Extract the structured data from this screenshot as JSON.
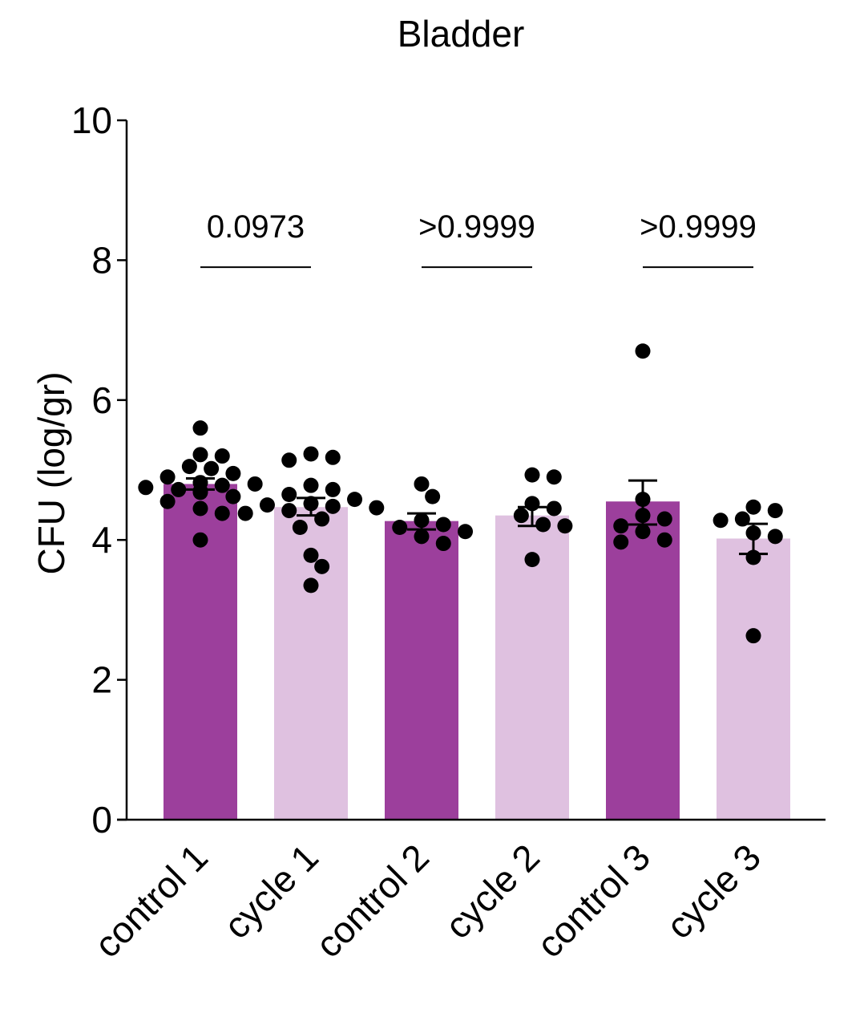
{
  "chart_data": {
    "type": "bar",
    "title": "Bladder",
    "ylabel": "CFU (log/gr)",
    "xlabel": "",
    "ylim": [
      0,
      10
    ],
    "yticks": [
      0,
      2,
      4,
      6,
      8,
      10
    ],
    "categories": [
      "control 1",
      "cycle 1",
      "control 2",
      "cycle 2",
      "control 3",
      "cycle 3"
    ],
    "values": [
      4.8,
      4.47,
      4.27,
      4.35,
      4.55,
      4.02
    ],
    "error": [
      [
        4.72,
        4.88
      ],
      [
        4.35,
        4.6
      ],
      [
        4.15,
        4.38
      ],
      [
        4.2,
        4.47
      ],
      [
        4.22,
        4.85
      ],
      [
        3.8,
        4.23
      ]
    ],
    "bar_colors": [
      "#9c3f9c",
      "#dfc1e0",
      "#9c3f9c",
      "#dfc1e0",
      "#9c3f9c",
      "#dfc1e0"
    ],
    "points": [
      [
        5.6,
        5.22,
        5.2,
        5.05,
        5.02,
        4.95,
        4.9,
        4.82,
        4.8,
        4.78,
        4.75,
        4.72,
        4.7,
        4.68,
        4.62,
        4.55,
        4.45,
        4.38,
        4.0
      ],
      [
        5.23,
        5.18,
        5.14,
        4.78,
        4.72,
        4.65,
        4.58,
        4.52,
        4.5,
        4.48,
        4.46,
        4.42,
        4.38,
        4.3,
        4.18,
        3.78,
        3.62,
        3.35
      ],
      [
        4.8,
        4.62,
        4.28,
        4.22,
        4.18,
        4.12,
        4.05,
        3.95
      ],
      [
        4.93,
        4.9,
        4.52,
        4.45,
        4.35,
        4.22,
        4.2,
        3.72
      ],
      [
        6.7,
        4.58,
        4.35,
        4.3,
        4.2,
        4.12,
        4.0,
        3.97
      ],
      [
        4.47,
        4.42,
        4.3,
        4.28,
        4.1,
        4.05,
        3.75,
        2.63
      ]
    ],
    "comparisons": [
      {
        "from": "control 1",
        "to": "cycle 1",
        "label": "0.0973",
        "y": 7.9
      },
      {
        "from": "control 2",
        "to": "cycle 2",
        "label": ">0.9999",
        "y": 7.9
      },
      {
        "from": "control 3",
        "to": "cycle 3",
        "label": ">0.9999",
        "y": 7.9
      }
    ],
    "point_color": "#000000",
    "axis_color": "#000000"
  }
}
